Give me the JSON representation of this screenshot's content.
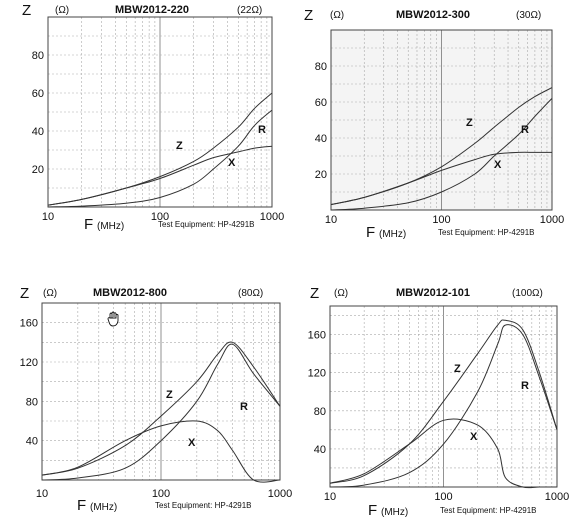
{
  "chart_data": [
    {
      "type": "line",
      "title": "MBW2012-220",
      "impedance_label": "(22Ω)",
      "ylabel": "Z",
      "yunit": "(Ω)",
      "xlabel": "F",
      "xunit": "(MHz)",
      "equipment": "Test Equipment: HP-4291B",
      "xscale": "log",
      "xlim": [
        10,
        1000
      ],
      "ylim": [
        0,
        100
      ],
      "xticks": [
        "10",
        "100",
        "1000"
      ],
      "yticks": [
        "20",
        "40",
        "60",
        "80"
      ],
      "x": [
        10,
        20,
        50,
        100,
        200,
        300,
        500,
        700,
        1000
      ],
      "series": [
        {
          "name": "Z",
          "values": [
            1,
            4,
            10,
            16,
            24,
            31,
            42,
            52,
            60
          ]
        },
        {
          "name": "R",
          "values": [
            0,
            0.5,
            2,
            5,
            12,
            20,
            32,
            43,
            51
          ]
        },
        {
          "name": "X",
          "values": [
            1,
            4,
            10,
            15,
            22,
            26,
            29,
            31,
            32
          ]
        }
      ]
    },
    {
      "type": "line",
      "title": "MBW2012-300",
      "impedance_label": "(30Ω)",
      "ylabel": "Z",
      "yunit": "(Ω)",
      "xlabel": "F",
      "xunit": "(MHz)",
      "equipment": "Test Equipment: HP-4291B",
      "xscale": "log",
      "xlim": [
        10,
        1000
      ],
      "ylim": [
        0,
        100
      ],
      "xticks": [
        "10",
        "100",
        "1000"
      ],
      "yticks": [
        "20",
        "40",
        "60",
        "80"
      ],
      "x": [
        10,
        20,
        50,
        100,
        200,
        300,
        500,
        700,
        1000
      ],
      "series": [
        {
          "name": "Z",
          "values": [
            3,
            7,
            15,
            24,
            37,
            46,
            57,
            63,
            68
          ]
        },
        {
          "name": "R",
          "values": [
            0,
            1,
            4,
            10,
            20,
            30,
            42,
            52,
            62
          ]
        },
        {
          "name": "X",
          "values": [
            3,
            7,
            15,
            22,
            28,
            31,
            32,
            32,
            32
          ]
        }
      ]
    },
    {
      "type": "line",
      "title": "MBW2012-800",
      "impedance_label": "(80Ω)",
      "ylabel": "Z",
      "yunit": "(Ω)",
      "xlabel": "F",
      "xunit": "(MHz)",
      "equipment": "Test Equipment: HP-4291B",
      "xscale": "log",
      "xlim": [
        10,
        1000
      ],
      "ylim": [
        0,
        180
      ],
      "xticks": [
        "10",
        "100",
        "1000"
      ],
      "yticks": [
        "40",
        "80",
        "120",
        "160"
      ],
      "x": [
        10,
        20,
        50,
        100,
        200,
        300,
        400,
        600,
        1000
      ],
      "series": [
        {
          "name": "Z",
          "values": [
            5,
            12,
            35,
            65,
            100,
            128,
            140,
            115,
            75
          ]
        },
        {
          "name": "R",
          "values": [
            0,
            2,
            12,
            40,
            80,
            118,
            138,
            108,
            75
          ]
        },
        {
          "name": "X",
          "values": [
            5,
            13,
            40,
            55,
            60,
            50,
            30,
            0,
            0
          ]
        }
      ]
    },
    {
      "type": "line",
      "title": "MBW2012-101",
      "impedance_label": "(100Ω)",
      "ylabel": "Z",
      "yunit": "(Ω)",
      "xlabel": "F",
      "xunit": "(MHz)",
      "equipment": "Test Equipment: HP-4291B",
      "xscale": "log",
      "xlim": [
        10,
        1000
      ],
      "ylim": [
        0,
        190
      ],
      "xticks": [
        "10",
        "100",
        "1000"
      ],
      "yticks": [
        "40",
        "80",
        "120",
        "160"
      ],
      "x": [
        10,
        20,
        50,
        100,
        200,
        300,
        350,
        500,
        700,
        1000
      ],
      "series": [
        {
          "name": "Z",
          "values": [
            4,
            12,
            45,
            90,
            140,
            170,
            175,
            165,
            120,
            60
          ]
        },
        {
          "name": "R",
          "values": [
            0,
            2,
            15,
            45,
            100,
            150,
            170,
            160,
            115,
            60
          ]
        },
        {
          "name": "X",
          "values": [
            4,
            14,
            45,
            70,
            65,
            40,
            10,
            0,
            0,
            0
          ]
        }
      ]
    }
  ]
}
